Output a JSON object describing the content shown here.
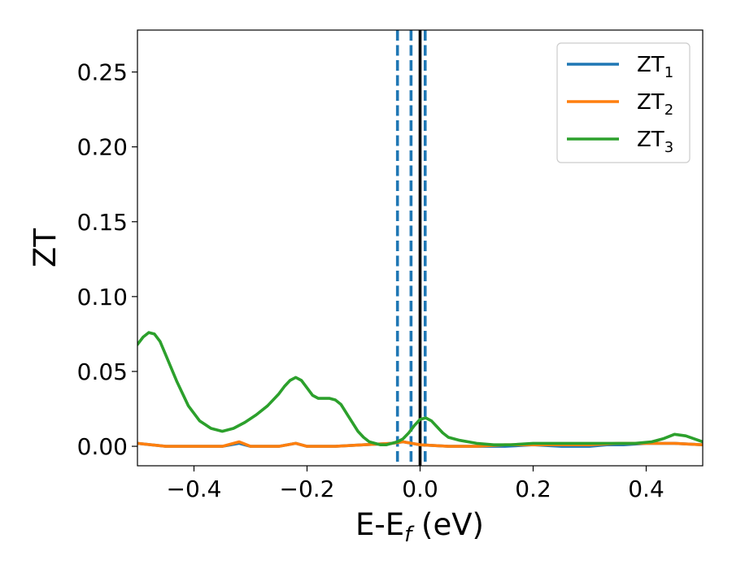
{
  "chart_data": {
    "type": "line",
    "xlabel": {
      "main": "E-E",
      "sub": "f",
      "suffix": " (eV)"
    },
    "ylabel": "ZT",
    "xlim": [
      -0.5,
      0.5
    ],
    "ylim": [
      -0.013,
      0.278
    ],
    "xticks": [
      -0.4,
      -0.2,
      0.0,
      0.2,
      0.4
    ],
    "xtick_labels": [
      "−0.4",
      "−0.2",
      "0.0",
      "0.2",
      "0.4"
    ],
    "yticks": [
      0.0,
      0.05,
      0.1,
      0.15,
      0.2,
      0.25
    ],
    "ytick_labels": [
      "0.00",
      "0.05",
      "0.10",
      "0.15",
      "0.20",
      "0.25"
    ],
    "grid": false,
    "legend_position": "top-right",
    "vlines": [
      {
        "x": -0.04,
        "style": "dashed",
        "color": "#1f77b4"
      },
      {
        "x": -0.016,
        "style": "dashed",
        "color": "#1f77b4"
      },
      {
        "x": 0.009,
        "style": "dashed",
        "color": "#1f77b4"
      },
      {
        "x": 0.0,
        "style": "solid",
        "color": "#000000"
      }
    ],
    "series": [
      {
        "name": "ZT",
        "sub": "1",
        "color": "#1f77b4",
        "x": [
          -0.5,
          -0.45,
          -0.4,
          -0.35,
          -0.32,
          -0.3,
          -0.25,
          -0.22,
          -0.2,
          -0.15,
          -0.1,
          -0.05,
          -0.03,
          0.0,
          0.05,
          0.1,
          0.15,
          0.2,
          0.25,
          0.3,
          0.33,
          0.36,
          0.4,
          0.45,
          0.5
        ],
        "y": [
          0.002,
          0.0,
          0.0,
          0.0,
          0.002,
          0.0,
          0.0,
          0.002,
          0.0,
          0.0,
          0.001,
          0.002,
          0.003,
          0.001,
          0.0,
          0.0,
          0.0,
          0.001,
          0.0,
          0.0,
          0.001,
          0.001,
          0.002,
          0.002,
          0.001
        ]
      },
      {
        "name": "ZT",
        "sub": "2",
        "color": "#ff7f0e",
        "x": [
          -0.5,
          -0.45,
          -0.4,
          -0.35,
          -0.32,
          -0.3,
          -0.25,
          -0.22,
          -0.2,
          -0.15,
          -0.1,
          -0.05,
          -0.03,
          0.0,
          0.05,
          0.1,
          0.15,
          0.2,
          0.25,
          0.3,
          0.35,
          0.4,
          0.45,
          0.5
        ],
        "y": [
          0.002,
          0.0,
          0.0,
          0.0,
          0.003,
          0.0,
          0.0,
          0.002,
          0.0,
          0.0,
          0.001,
          0.002,
          0.003,
          0.001,
          0.0,
          0.0,
          0.001,
          0.001,
          0.001,
          0.001,
          0.002,
          0.002,
          0.002,
          0.001
        ]
      },
      {
        "name": "ZT",
        "sub": "3",
        "color": "#2ca02c",
        "x": [
          -0.5,
          -0.49,
          -0.48,
          -0.47,
          -0.46,
          -0.45,
          -0.43,
          -0.41,
          -0.39,
          -0.37,
          -0.35,
          -0.33,
          -0.31,
          -0.29,
          -0.27,
          -0.25,
          -0.24,
          -0.23,
          -0.22,
          -0.21,
          -0.2,
          -0.19,
          -0.18,
          -0.17,
          -0.16,
          -0.15,
          -0.14,
          -0.13,
          -0.12,
          -0.11,
          -0.1,
          -0.09,
          -0.08,
          -0.07,
          -0.06,
          -0.05,
          -0.04,
          -0.03,
          -0.02,
          -0.01,
          0.0,
          0.01,
          0.02,
          0.03,
          0.04,
          0.05,
          0.07,
          0.1,
          0.13,
          0.16,
          0.2,
          0.25,
          0.3,
          0.35,
          0.38,
          0.41,
          0.43,
          0.45,
          0.47,
          0.5
        ],
        "y": [
          0.068,
          0.073,
          0.076,
          0.075,
          0.07,
          0.061,
          0.043,
          0.027,
          0.017,
          0.012,
          0.01,
          0.012,
          0.016,
          0.021,
          0.027,
          0.035,
          0.04,
          0.044,
          0.046,
          0.044,
          0.039,
          0.034,
          0.032,
          0.032,
          0.032,
          0.031,
          0.028,
          0.022,
          0.016,
          0.01,
          0.006,
          0.003,
          0.002,
          0.001,
          0.001,
          0.002,
          0.003,
          0.005,
          0.009,
          0.014,
          0.018,
          0.019,
          0.017,
          0.013,
          0.009,
          0.006,
          0.004,
          0.002,
          0.001,
          0.001,
          0.002,
          0.002,
          0.002,
          0.002,
          0.002,
          0.003,
          0.005,
          0.008,
          0.007,
          0.003
        ]
      }
    ]
  }
}
